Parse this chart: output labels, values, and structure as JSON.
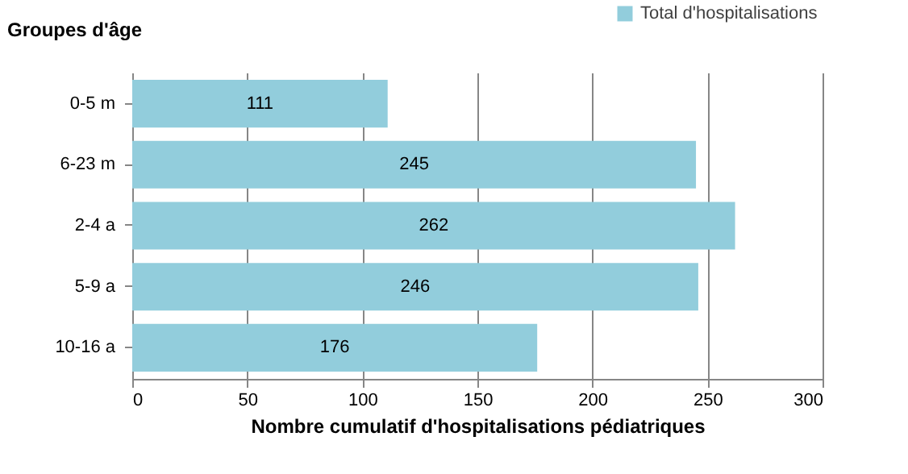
{
  "chart_data": {
    "type": "bar",
    "orientation": "horizontal",
    "xlabel": "Nombre cumulatif d'hospitalisations pédiatriques",
    "ylabel": "Groupes d'âge",
    "categories": [
      "0-5 m",
      "6-23 m",
      "2-4 a",
      "5-9 a",
      "10-16 a"
    ],
    "series": [
      {
        "name": "Total d'hospitalisations",
        "color": "#92cddc",
        "values": [
          111,
          245,
          262,
          246,
          176
        ]
      }
    ],
    "xlim": [
      0,
      300
    ],
    "xticks": [
      0,
      50,
      100,
      150,
      200,
      250,
      300
    ],
    "grid": "x",
    "legend": "top right",
    "data_labels": true
  }
}
